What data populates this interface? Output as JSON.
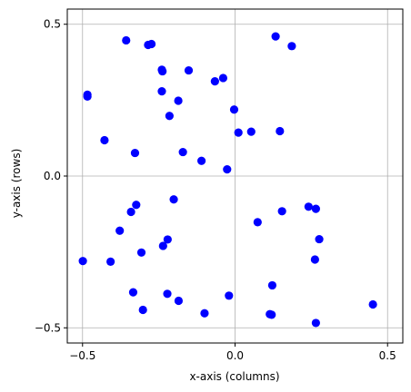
{
  "chart_data": {
    "type": "scatter",
    "xlabel": "x-axis (columns)",
    "ylabel": "y-axis (rows)",
    "xlim": [
      -0.55,
      0.55
    ],
    "ylim": [
      -0.55,
      0.55
    ],
    "x_ticks": [
      -0.5,
      0.0,
      0.5
    ],
    "y_ticks": [
      -0.5,
      0.0,
      0.5
    ],
    "x_tick_labels": [
      "−0.5",
      "0.0",
      "0.5"
    ],
    "y_tick_labels": [
      "−0.5",
      "0.0",
      "0.5"
    ],
    "grid": true,
    "marker_color": "#0000ff",
    "series": [
      {
        "points": [
          [
            -0.357,
            0.447
          ],
          [
            -0.285,
            0.432
          ],
          [
            -0.274,
            0.435
          ],
          [
            0.133,
            0.46
          ],
          [
            0.186,
            0.428
          ],
          [
            -0.484,
            0.268
          ],
          [
            -0.484,
            0.262
          ],
          [
            -0.24,
            0.35
          ],
          [
            -0.238,
            0.345
          ],
          [
            -0.152,
            0.348
          ],
          [
            -0.066,
            0.312
          ],
          [
            -0.039,
            0.323
          ],
          [
            -0.24,
            0.279
          ],
          [
            -0.186,
            0.248
          ],
          [
            -0.215,
            0.198
          ],
          [
            -0.003,
            0.219
          ],
          [
            0.011,
            0.143
          ],
          [
            0.053,
            0.146
          ],
          [
            0.147,
            0.148
          ],
          [
            -0.428,
            0.118
          ],
          [
            -0.328,
            0.076
          ],
          [
            -0.171,
            0.079
          ],
          [
            -0.11,
            0.05
          ],
          [
            -0.026,
            0.022
          ],
          [
            -0.201,
            -0.077
          ],
          [
            -0.324,
            -0.095
          ],
          [
            -0.341,
            -0.118
          ],
          [
            -0.378,
            -0.18
          ],
          [
            0.241,
            -0.101
          ],
          [
            0.265,
            -0.108
          ],
          [
            0.154,
            -0.116
          ],
          [
            0.074,
            -0.152
          ],
          [
            -0.221,
            -0.209
          ],
          [
            -0.236,
            -0.23
          ],
          [
            0.276,
            -0.208
          ],
          [
            -0.307,
            -0.252
          ],
          [
            -0.408,
            -0.282
          ],
          [
            -0.499,
            -0.28
          ],
          [
            0.262,
            -0.275
          ],
          [
            -0.334,
            -0.383
          ],
          [
            -0.222,
            -0.388
          ],
          [
            -0.185,
            -0.411
          ],
          [
            -0.02,
            -0.394
          ],
          [
            0.122,
            -0.36
          ],
          [
            -0.302,
            -0.441
          ],
          [
            -0.1,
            -0.452
          ],
          [
            0.114,
            -0.455
          ],
          [
            0.12,
            -0.457
          ],
          [
            0.265,
            -0.484
          ],
          [
            0.452,
            -0.423
          ]
        ]
      }
    ]
  }
}
